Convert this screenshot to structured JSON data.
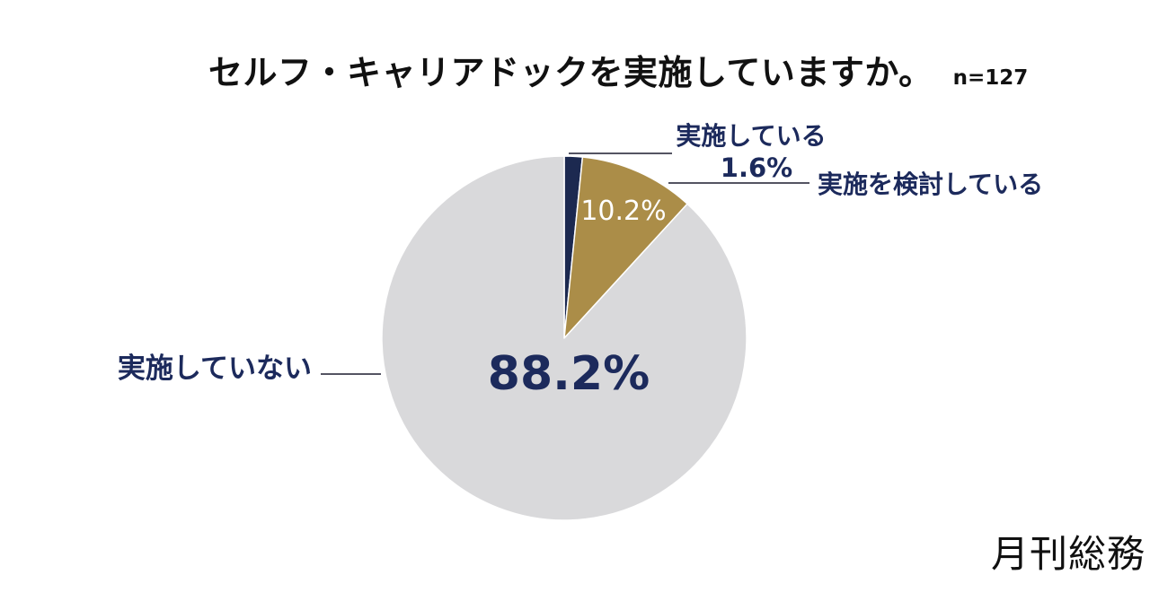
{
  "header": {
    "title": "セルフ・キャリアドックを実施していますか。",
    "sample_size_label": "n=127"
  },
  "chart_data": {
    "type": "pie",
    "title": "セルフ・キャリアドックを実施していますか。",
    "sample_size_label": "n=127",
    "start_angle_deg": 0,
    "direction": "clockwise",
    "legend_position": "callout-labels",
    "slices": [
      {
        "label": "実施している",
        "value": 1.6,
        "pct_label": "1.6%",
        "color": "#1c2950"
      },
      {
        "label": "実施を検討している",
        "value": 10.2,
        "pct_label": "10.2%",
        "color": "#ab8d48"
      },
      {
        "label": "実施していない",
        "value": 88.2,
        "pct_label": "88.2%",
        "color": "#d9d9db"
      }
    ],
    "colors": {
      "label_text": "#1c2a5c",
      "inside_label_light": "#ffffff",
      "inside_label_dark": "#1c2a5c",
      "title_text": "#111111",
      "leader_line": "#1b1b2f",
      "background": "#ffffff"
    }
  },
  "footer": {
    "brand": "月刊総務"
  }
}
